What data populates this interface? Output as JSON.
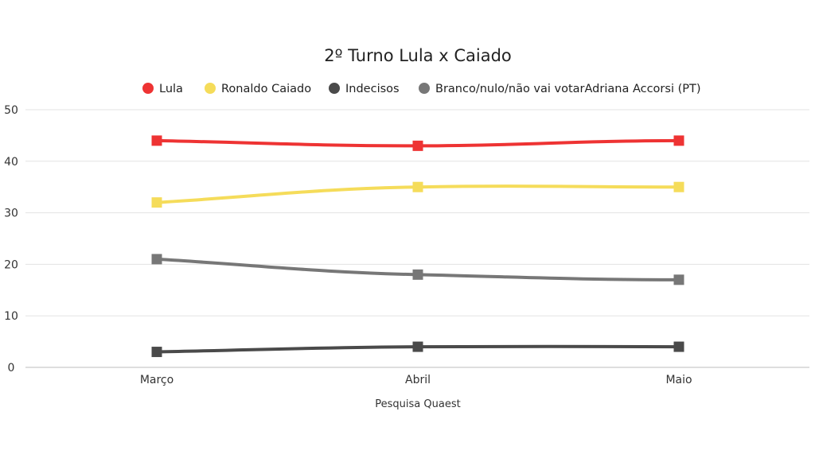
{
  "chart_data": {
    "type": "line",
    "title": "2º Turno Lula x Caiado",
    "xlabel": "Pesquisa Quaest",
    "ylabel": "",
    "categories": [
      "Março",
      "Abril",
      "Maio"
    ],
    "ylim": [
      0,
      50
    ],
    "yticks": [
      "0",
      "10",
      "20",
      "30",
      "40",
      "50"
    ],
    "grid": true,
    "legend_position": "top",
    "series": [
      {
        "name": "Lula",
        "color": "#ee3333",
        "values": [
          44,
          43,
          44
        ]
      },
      {
        "name": "Ronaldo Caiado",
        "color": "#f5dc5a",
        "values": [
          32,
          35,
          35
        ]
      },
      {
        "name": "Indecisos",
        "color": "#4a4a4a",
        "values": [
          3,
          4,
          4
        ]
      },
      {
        "name": "Branco/nulo/não vai votarAdriana Accorsi (PT)",
        "color": "#777777",
        "values": [
          21,
          18,
          17
        ]
      }
    ]
  }
}
